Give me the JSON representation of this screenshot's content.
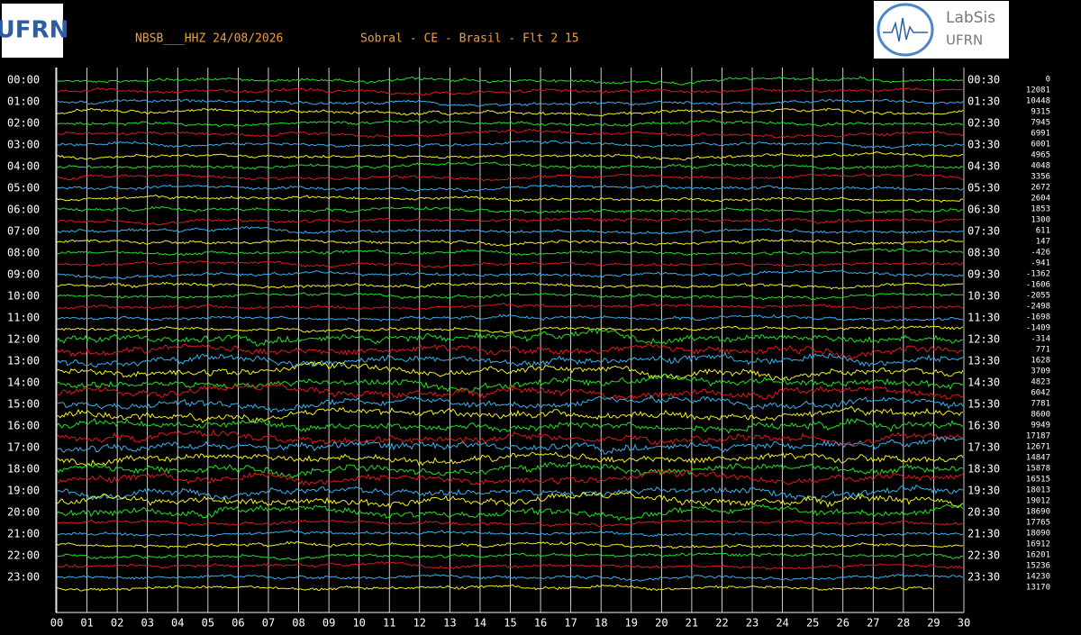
{
  "header": {
    "station": "NBSB___HHZ 24/08/2026",
    "location": "Sobral - CE - Brasil - Flt 2 15"
  },
  "logos": {
    "left": "UFRN",
    "right_top": "LabSis",
    "right_bottom": "UFRN"
  },
  "left_labels": [
    "00:00",
    "01:00",
    "02:00",
    "03:00",
    "04:00",
    "05:00",
    "06:00",
    "07:00",
    "08:00",
    "09:00",
    "10:00",
    "11:00",
    "12:00",
    "13:00",
    "14:00",
    "15:00",
    "16:00",
    "17:00",
    "18:00",
    "19:00",
    "20:00",
    "21:00",
    "22:00",
    "23:00"
  ],
  "right_labels": [
    "00:30",
    "01:30",
    "02:30",
    "03:30",
    "04:30",
    "05:30",
    "06:30",
    "07:30",
    "08:30",
    "09:30",
    "10:30",
    "11:30",
    "12:30",
    "13:30",
    "14:30",
    "15:30",
    "16:30",
    "17:30",
    "18:30",
    "19:30",
    "20:30",
    "21:30",
    "22:30",
    "23:30"
  ],
  "offsets": [
    0,
    12081,
    10448,
    9315,
    7945,
    6991,
    6001,
    4965,
    4048,
    3356,
    2672,
    2604,
    1853,
    1300,
    611,
    147,
    -426,
    -941,
    -1362,
    -1606,
    -2055,
    -2498,
    -1698,
    -1409,
    -314,
    771,
    1628,
    3709,
    4823,
    6042,
    7781,
    8600,
    9949,
    17187,
    12671,
    14847,
    15878,
    16515,
    18013,
    19012,
    18690,
    17765,
    18090,
    16912,
    16201,
    15236,
    14230,
    13170
  ],
  "x_ticks": [
    "00",
    "01",
    "02",
    "03",
    "04",
    "05",
    "06",
    "07",
    "08",
    "09",
    "10",
    "11",
    "12",
    "13",
    "14",
    "15",
    "16",
    "17",
    "18",
    "19",
    "20",
    "21",
    "22",
    "23",
    "24",
    "25",
    "26",
    "27",
    "28",
    "29",
    "30"
  ]
}
